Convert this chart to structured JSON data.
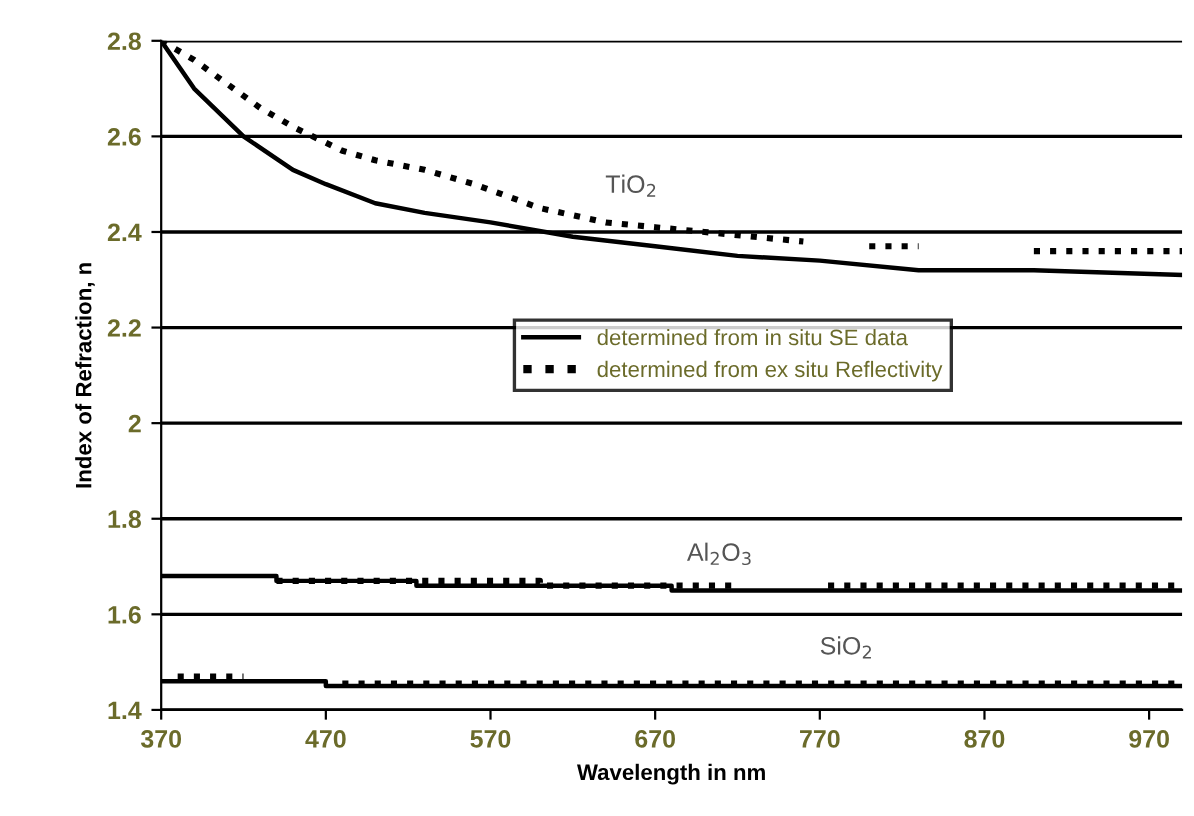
{
  "chart_data": {
    "type": "line",
    "xlabel": "Wavelength in nm",
    "ylabel": "Index of Refraction, n",
    "xlim": [
      370,
      990
    ],
    "ylim": [
      1.4,
      2.8
    ],
    "xticks": [
      370,
      470,
      570,
      670,
      770,
      870,
      970
    ],
    "yticks": [
      1.4,
      1.6,
      1.8,
      2,
      2.2,
      2.4,
      2.6,
      2.8
    ],
    "grid": "y",
    "legend": "center",
    "marker": "none",
    "annotations": [
      "TiO$_{2}$",
      "Al$_{2}$O$_{3}$",
      "SiO$_{2}$"
    ],
    "series": [
      {
        "name": "determined from in situ SE data",
        "color": "#000000",
        "line_style": "solid",
        "x": [
          370,
          390,
          420,
          450,
          470,
          500,
          530,
          570,
          620,
          670,
          720,
          770,
          830,
          900,
          990
        ],
        "values": [
          2.8,
          2.7,
          2.6,
          2.53,
          2.5,
          2.46,
          2.44,
          2.42,
          2.39,
          2.37,
          2.35,
          2.34,
          2.32,
          2.32,
          2.31
        ]
      },
      {
        "name": "determined from ex situ Reflectivity",
        "color": "#000000",
        "line_style": "dotted",
        "x": [
          370,
          390,
          410,
          430,
          450,
          480,
          500,
          530,
          560,
          600,
          640,
          670,
          700,
          730,
          760,
          780,
          800,
          830,
          860,
          900,
          940,
          990
        ],
        "values": [
          2.8,
          2.76,
          2.71,
          2.66,
          2.62,
          2.57,
          2.55,
          2.53,
          2.5,
          2.45,
          2.42,
          2.41,
          2.4,
          2.39,
          2.38,
          null,
          2.37,
          2.37,
          null,
          2.36,
          2.36,
          2.36
        ]
      },
      {
        "color": "#000000",
        "line_style": "solid",
        "x": [
          370,
          440,
          440,
          525,
          525,
          680,
          680,
          990
        ],
        "values": [
          1.68,
          1.68,
          1.67,
          1.67,
          1.66,
          1.66,
          1.65,
          1.65
        ]
      },
      {
        "color": "#000000",
        "line_style": "dotted",
        "x": [
          440,
          520,
          600,
          600,
          720,
          740,
          775,
          880,
          990
        ],
        "values": [
          1.67,
          1.67,
          1.67,
          1.66,
          1.66,
          null,
          1.66,
          1.66,
          1.66
        ]
      },
      {
        "color": "#000000",
        "line_style": "solid",
        "x": [
          370,
          470,
          470,
          990
        ],
        "values": [
          1.46,
          1.46,
          1.45,
          1.45
        ]
      },
      {
        "color": "#000000",
        "line_style": "dotted",
        "x": [
          380,
          420,
          450,
          480,
          700,
          990
        ],
        "values": [
          1.47,
          1.47,
          null,
          1.455,
          1.455,
          1.455
        ]
      }
    ]
  }
}
